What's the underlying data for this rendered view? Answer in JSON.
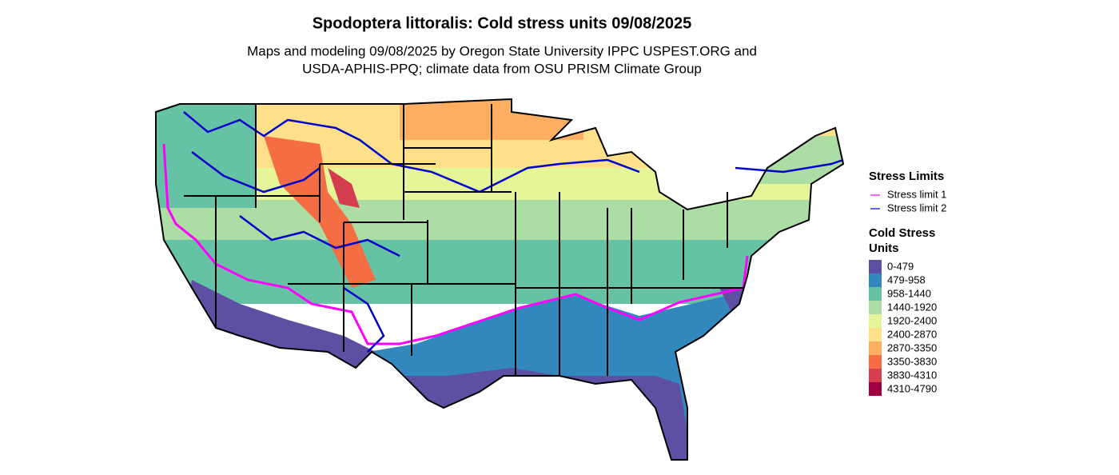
{
  "title": "Spodoptera littoralis: Cold stress units 09/08/2025",
  "subtitle": [
    "Maps and modeling 09/08/2025 by Oregon State University IPPC USPEST.ORG and",
    "USDA-APHIS-PPQ; climate data from OSU PRISM Climate Group"
  ],
  "legend_limits": {
    "title": "Stress Limits",
    "items": [
      {
        "label": "Stress limit 1",
        "color": "#ff00ff"
      },
      {
        "label": "Stress limit 2",
        "color": "#0000cd"
      }
    ]
  },
  "legend_units": {
    "title": [
      "Cold Stress",
      "Units"
    ],
    "items": [
      {
        "label": "0-479",
        "color": "#5e4fa2"
      },
      {
        "label": "479-958",
        "color": "#3288bd"
      },
      {
        "label": "958-1440",
        "color": "#66c2a5"
      },
      {
        "label": "1440-1920",
        "color": "#abdda4"
      },
      {
        "label": "1920-2400",
        "color": "#e6f598"
      },
      {
        "label": "2400-2870",
        "color": "#fee08b"
      },
      {
        "label": "2870-3350",
        "color": "#fdae61"
      },
      {
        "label": "3350-3830",
        "color": "#f46d43"
      },
      {
        "label": "3830-4310",
        "color": "#d53e4f"
      },
      {
        "label": "4310-4790",
        "color": "#9e0142"
      }
    ]
  }
}
